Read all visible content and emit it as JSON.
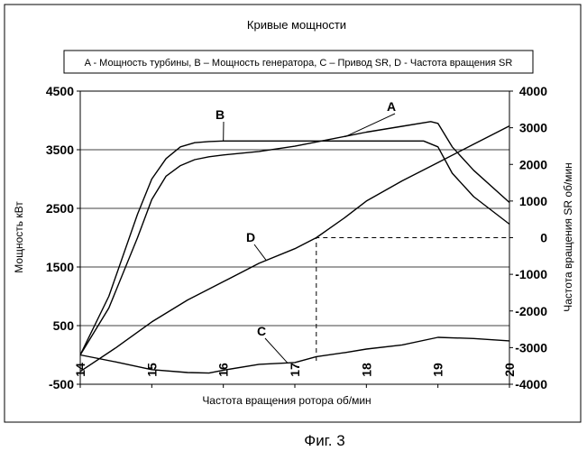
{
  "chart_data": {
    "type": "line",
    "title": "Кривые мощности",
    "legend_text": "A - Мощность турбины, B – Мощность генератора, C – Привод SR, D - Частота вращения SR",
    "legend_position": "top",
    "xlabel": "Частота вращения ротора об/мин",
    "ylabel_left": "Мощность кВт",
    "ylabel_right": "Частота вращения SR об/мин",
    "xlim": [
      14,
      20
    ],
    "ylim_left": [
      -500,
      4500
    ],
    "ylim_right": [
      -4000,
      4000
    ],
    "x_ticks": [
      "14",
      "15",
      "16",
      "17",
      "18",
      "19",
      "20"
    ],
    "y_left_ticks": [
      "4500",
      "3500",
      "2500",
      "1500",
      "500",
      "-500"
    ],
    "y_right_ticks": [
      "4000",
      "3000",
      "2000",
      "1000",
      "0",
      "-1000",
      "-2000",
      "-3000",
      "-4000"
    ],
    "grid": true,
    "series": [
      {
        "name": "A",
        "axis": "left",
        "values": [
          [
            14.0,
            0
          ],
          [
            14.4,
            800
          ],
          [
            14.8,
            2000
          ],
          [
            15.0,
            2650
          ],
          [
            15.2,
            3050
          ],
          [
            15.4,
            3230
          ],
          [
            15.6,
            3330
          ],
          [
            15.8,
            3380
          ],
          [
            16.0,
            3410
          ],
          [
            16.5,
            3470
          ],
          [
            17.0,
            3560
          ],
          [
            17.5,
            3680
          ],
          [
            18.0,
            3800
          ],
          [
            18.5,
            3900
          ],
          [
            18.9,
            3980
          ],
          [
            19.0,
            3950
          ],
          [
            19.2,
            3550
          ],
          [
            19.5,
            3150
          ],
          [
            20.0,
            2600
          ]
        ]
      },
      {
        "name": "B",
        "axis": "left",
        "values": [
          [
            14.0,
            0
          ],
          [
            14.4,
            1000
          ],
          [
            14.8,
            2400
          ],
          [
            15.0,
            3000
          ],
          [
            15.2,
            3350
          ],
          [
            15.4,
            3550
          ],
          [
            15.6,
            3620
          ],
          [
            15.8,
            3640
          ],
          [
            16.0,
            3650
          ],
          [
            17.0,
            3650
          ],
          [
            18.0,
            3650
          ],
          [
            18.8,
            3650
          ],
          [
            19.0,
            3550
          ],
          [
            19.2,
            3100
          ],
          [
            19.5,
            2700
          ],
          [
            20.0,
            2230
          ]
        ]
      },
      {
        "name": "C",
        "axis": "left",
        "values": [
          [
            14.0,
            0
          ],
          [
            14.5,
            -120
          ],
          [
            15.0,
            -250
          ],
          [
            15.5,
            -300
          ],
          [
            15.8,
            -310
          ],
          [
            16.0,
            -260
          ],
          [
            16.5,
            -160
          ],
          [
            17.0,
            -130
          ],
          [
            17.3,
            -30
          ],
          [
            17.7,
            40
          ],
          [
            18.0,
            100
          ],
          [
            18.5,
            170
          ],
          [
            19.0,
            300
          ],
          [
            19.5,
            280
          ],
          [
            20.0,
            240
          ]
        ]
      },
      {
        "name": "D",
        "axis": "right",
        "values": [
          [
            14.0,
            -3650
          ],
          [
            14.5,
            -3000
          ],
          [
            15.0,
            -2300
          ],
          [
            15.5,
            -1700
          ],
          [
            16.0,
            -1200
          ],
          [
            16.5,
            -700
          ],
          [
            17.0,
            -300
          ],
          [
            17.3,
            0
          ],
          [
            17.7,
            550
          ],
          [
            18.0,
            1000
          ],
          [
            18.5,
            1550
          ],
          [
            19.0,
            2050
          ],
          [
            19.5,
            2550
          ],
          [
            20.0,
            3050
          ]
        ]
      }
    ],
    "annotations": [
      {
        "text": "A",
        "series": "A"
      },
      {
        "text": "B",
        "series": "B"
      },
      {
        "text": "C",
        "series": "C"
      },
      {
        "text": "D",
        "series": "D"
      }
    ],
    "dashed_marker": {
      "x": 17.3,
      "y_right": 0
    }
  },
  "caption": "Фиг. 3"
}
